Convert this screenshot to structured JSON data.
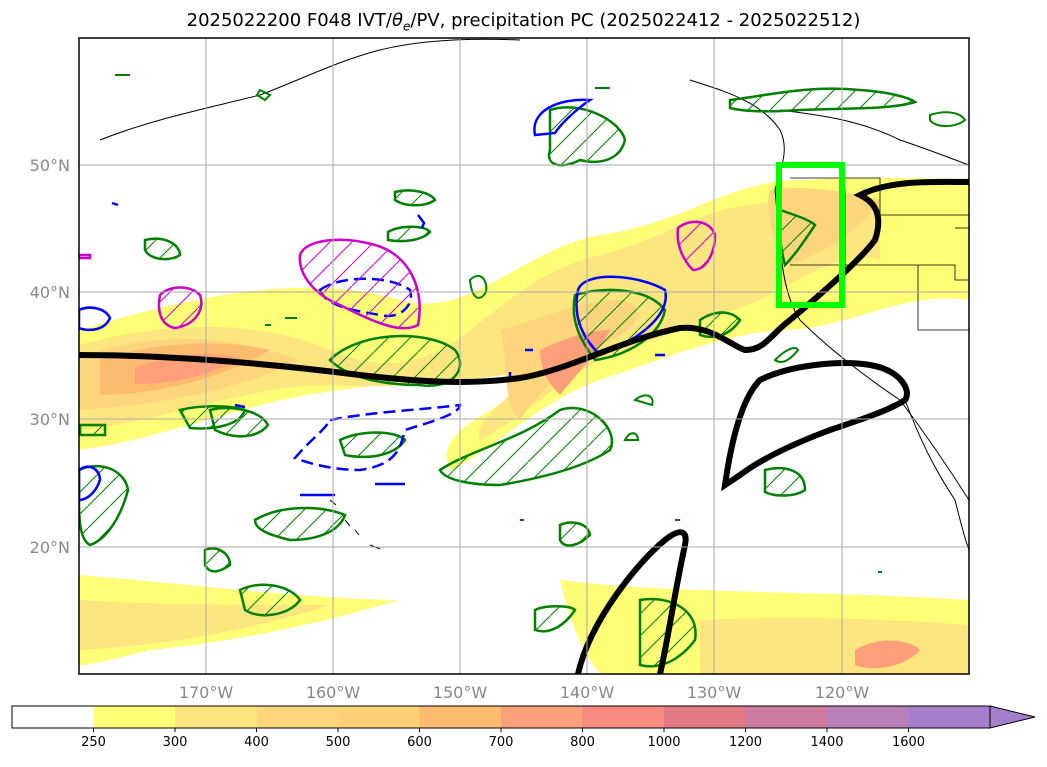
{
  "title_prefix": "2025022200 F048 IVT/",
  "title_theta": "θ",
  "title_theta_sub": "e",
  "title_suffix": "/PV, precipitation PC (2025022412 - 2025022512)",
  "map": {
    "lon_range": [
      -180,
      -110
    ],
    "lat_range": [
      10,
      60
    ],
    "longitude_ticks": [
      "170°W",
      "160°W",
      "150°W",
      "140°W",
      "130°W",
      "120°W"
    ],
    "latitude_ticks": [
      "50°N",
      "40°N",
      "30°N",
      "20°N"
    ],
    "grid": true,
    "target_box": {
      "lon": [
        -125,
        -120
      ],
      "lat": [
        39,
        50
      ],
      "color": "#00ff00"
    }
  },
  "colorbar": {
    "units_shown": "IVT",
    "levels": [
      "250",
      "300",
      "400",
      "500",
      "600",
      "700",
      "800",
      "1000",
      "1200",
      "1400",
      "1600"
    ],
    "colors": [
      "#ffffff",
      "#ffff77",
      "#fde680",
      "#fcd57c",
      "#fdd277",
      "#fdbb72",
      "#fd9f78",
      "#f88b7f",
      "#e27a85",
      "#cc7a9d",
      "#b87fb8",
      "#a57fcc"
    ],
    "extend": "max"
  },
  "legend_colors": {
    "precip_contour": "#008000",
    "pv_contour": "#0000ff",
    "theta_contour": "#cc00cc",
    "jet_line": "#000000"
  }
}
